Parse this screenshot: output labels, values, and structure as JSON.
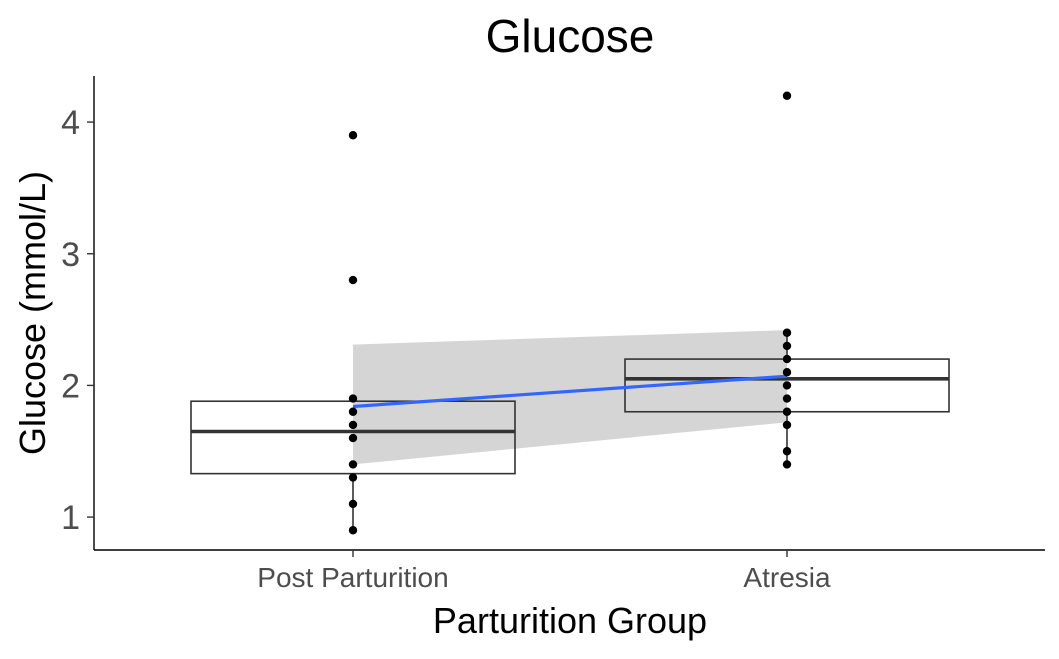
{
  "chart_data": {
    "type": "box",
    "title": "Glucose",
    "xlabel": "Parturition Group",
    "ylabel": "Glucose (mmol/L)",
    "categories": [
      "Post Parturition",
      "Atresia"
    ],
    "y_ticks": [
      1,
      2,
      3,
      4
    ],
    "ylim": [
      0.75,
      4.35
    ],
    "grid": false,
    "legend": "none",
    "boxes": [
      {
        "category": "Post Parturition",
        "q1": 1.33,
        "median": 1.65,
        "q3": 1.88,
        "whisker_low": 0.9,
        "whisker_high": 1.9
      },
      {
        "category": "Atresia",
        "q1": 1.8,
        "median": 2.05,
        "q3": 2.2,
        "whisker_low": 1.4,
        "whisker_high": 2.4
      }
    ],
    "points": [
      {
        "category": "Post Parturition",
        "values": [
          3.9,
          2.8,
          1.9,
          1.8,
          1.7,
          1.6,
          1.4,
          1.3,
          1.1,
          0.9
        ]
      },
      {
        "category": "Atresia",
        "values": [
          4.2,
          2.4,
          2.3,
          2.2,
          2.1,
          2.0,
          1.9,
          1.8,
          1.7,
          1.5,
          1.4
        ]
      }
    ],
    "trend": {
      "color": "#3366ff",
      "band_color": "#d3d3d3",
      "start": {
        "category": "Post Parturition",
        "y": 1.84,
        "lower": 1.4,
        "upper": 2.31
      },
      "end": {
        "category": "Atresia",
        "y": 2.07,
        "lower": 1.72,
        "upper": 2.42
      }
    }
  }
}
